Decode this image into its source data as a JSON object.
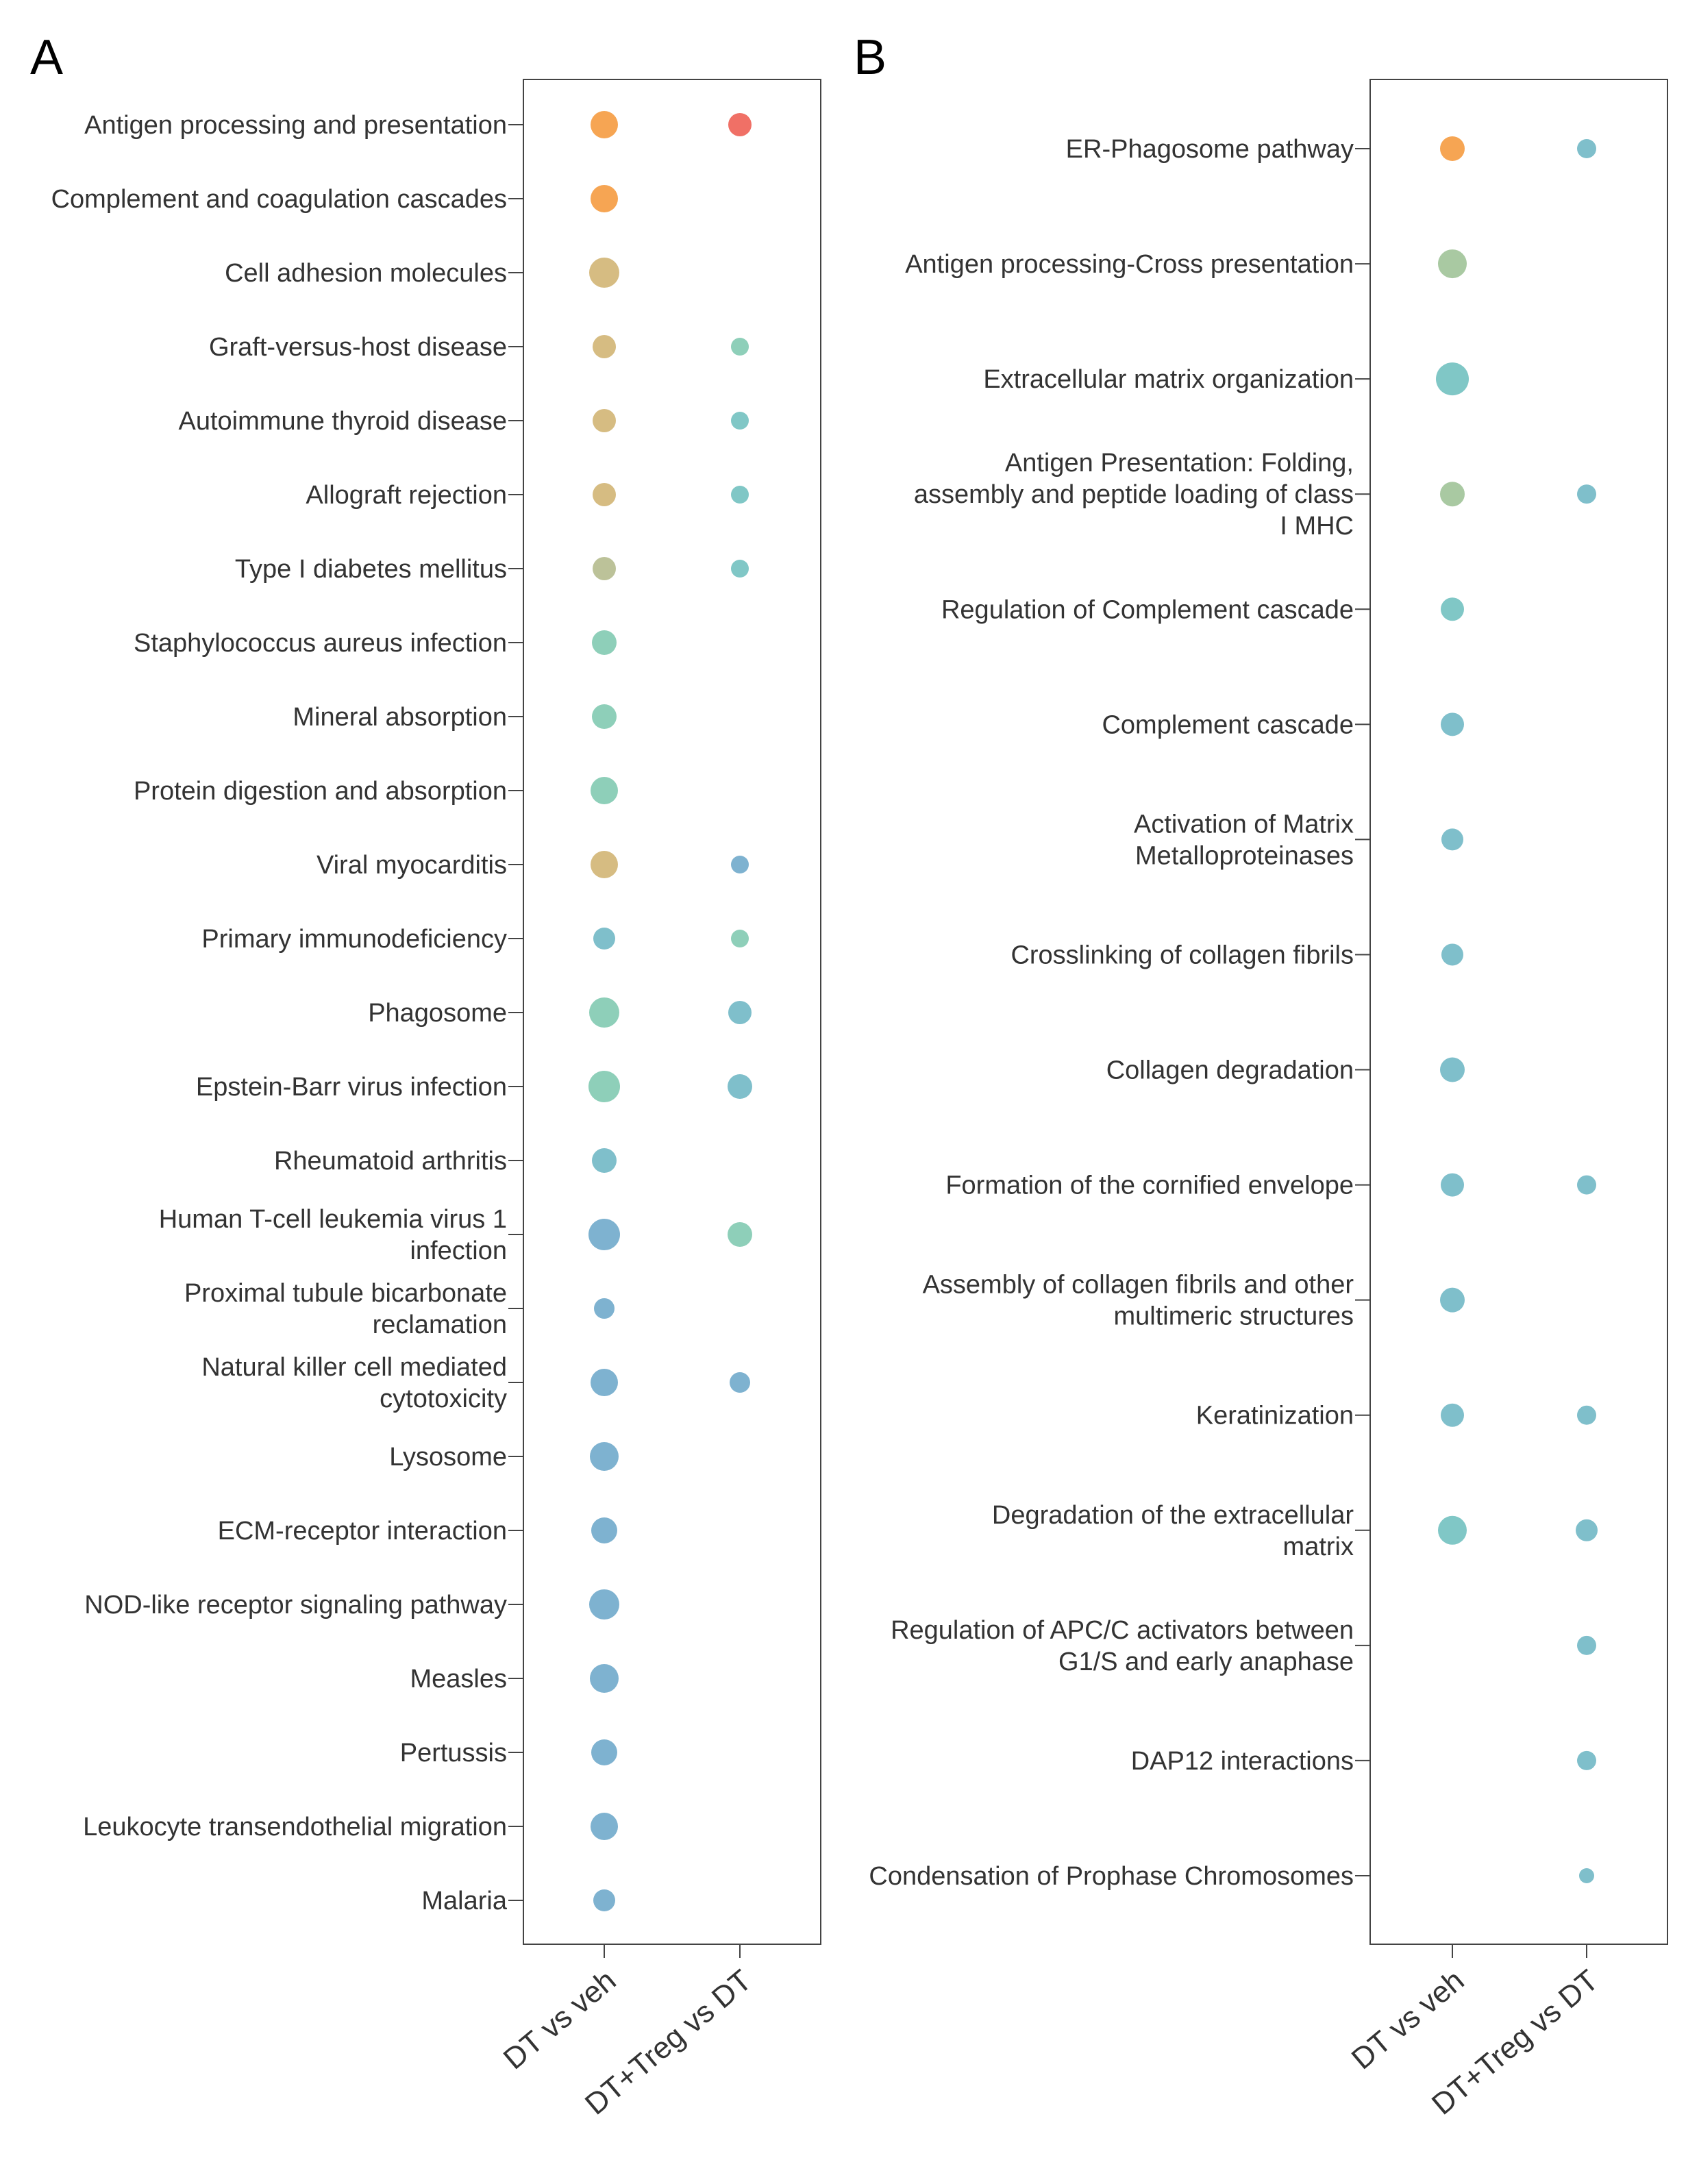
{
  "palette": {
    "orange": "#f6a553",
    "red": "#f07066",
    "tan": "#d6bc82",
    "olive": "#bcc299",
    "sage": "#a9c9a2",
    "mint": "#8ecfb9",
    "teal": "#80c7c6",
    "cyan": "#7fbfcb",
    "blue": "#7eb2d0"
  },
  "chart_data": [
    {
      "type": "scatter",
      "panel_label": "A",
      "x_categories": [
        "DT vs veh",
        "DT+Treg vs DT"
      ],
      "y_terms": [
        [
          "Antigen processing and presentation"
        ],
        [
          "Complement and coagulation cascades"
        ],
        [
          "Cell adhesion molecules"
        ],
        [
          "Graft-versus-host disease"
        ],
        [
          "Autoimmune thyroid disease"
        ],
        [
          "Allograft rejection"
        ],
        [
          "Type I diabetes mellitus"
        ],
        [
          "Staphylococcus aureus infection"
        ],
        [
          "Mineral absorption"
        ],
        [
          "Protein digestion and absorption"
        ],
        [
          "Viral myocarditis"
        ],
        [
          "Primary immunodeficiency"
        ],
        [
          "Phagosome"
        ],
        [
          "Epstein-Barr virus infection"
        ],
        [
          "Rheumatoid arthritis"
        ],
        [
          "Human T-cell leukemia virus 1",
          "infection"
        ],
        [
          "Proximal tubule bicarbonate",
          "reclamation"
        ],
        [
          "Natural killer cell mediated",
          "cytotoxicity"
        ],
        [
          "Lysosome"
        ],
        [
          "ECM-receptor interaction"
        ],
        [
          "NOD-like receptor signaling pathway"
        ],
        [
          "Measles"
        ],
        [
          "Pertussis"
        ],
        [
          "Leukocyte transendothelial migration"
        ],
        [
          "Malaria"
        ]
      ],
      "points": [
        {
          "term": 0,
          "x": 0,
          "size": 20,
          "color": "orange"
        },
        {
          "term": 0,
          "x": 1,
          "size": 17,
          "color": "red"
        },
        {
          "term": 1,
          "x": 0,
          "size": 20,
          "color": "orange"
        },
        {
          "term": 2,
          "x": 0,
          "size": 22,
          "color": "tan"
        },
        {
          "term": 3,
          "x": 0,
          "size": 17,
          "color": "tan"
        },
        {
          "term": 3,
          "x": 1,
          "size": 13,
          "color": "mint"
        },
        {
          "term": 4,
          "x": 0,
          "size": 17,
          "color": "tan"
        },
        {
          "term": 4,
          "x": 1,
          "size": 13,
          "color": "teal"
        },
        {
          "term": 5,
          "x": 0,
          "size": 17,
          "color": "tan"
        },
        {
          "term": 5,
          "x": 1,
          "size": 13,
          "color": "teal"
        },
        {
          "term": 6,
          "x": 0,
          "size": 17,
          "color": "olive"
        },
        {
          "term": 6,
          "x": 1,
          "size": 13,
          "color": "teal"
        },
        {
          "term": 7,
          "x": 0,
          "size": 18,
          "color": "mint"
        },
        {
          "term": 8,
          "x": 0,
          "size": 18,
          "color": "mint"
        },
        {
          "term": 9,
          "x": 0,
          "size": 20,
          "color": "mint"
        },
        {
          "term": 10,
          "x": 0,
          "size": 20,
          "color": "tan"
        },
        {
          "term": 10,
          "x": 1,
          "size": 13,
          "color": "blue"
        },
        {
          "term": 11,
          "x": 0,
          "size": 16,
          "color": "cyan"
        },
        {
          "term": 11,
          "x": 1,
          "size": 13,
          "color": "mint"
        },
        {
          "term": 12,
          "x": 0,
          "size": 22,
          "color": "mint"
        },
        {
          "term": 12,
          "x": 1,
          "size": 17,
          "color": "cyan"
        },
        {
          "term": 13,
          "x": 0,
          "size": 23,
          "color": "mint"
        },
        {
          "term": 13,
          "x": 1,
          "size": 18,
          "color": "cyan"
        },
        {
          "term": 14,
          "x": 0,
          "size": 18,
          "color": "cyan"
        },
        {
          "term": 15,
          "x": 0,
          "size": 23,
          "color": "blue"
        },
        {
          "term": 15,
          "x": 1,
          "size": 18,
          "color": "mint"
        },
        {
          "term": 16,
          "x": 0,
          "size": 15,
          "color": "blue"
        },
        {
          "term": 17,
          "x": 0,
          "size": 20,
          "color": "blue"
        },
        {
          "term": 17,
          "x": 1,
          "size": 15,
          "color": "blue"
        },
        {
          "term": 18,
          "x": 0,
          "size": 21,
          "color": "blue"
        },
        {
          "term": 19,
          "x": 0,
          "size": 19,
          "color": "blue"
        },
        {
          "term": 20,
          "x": 0,
          "size": 22,
          "color": "blue"
        },
        {
          "term": 21,
          "x": 0,
          "size": 21,
          "color": "blue"
        },
        {
          "term": 22,
          "x": 0,
          "size": 19,
          "color": "blue"
        },
        {
          "term": 23,
          "x": 0,
          "size": 20,
          "color": "blue"
        },
        {
          "term": 24,
          "x": 0,
          "size": 16,
          "color": "blue"
        }
      ]
    },
    {
      "type": "scatter",
      "panel_label": "B",
      "x_categories": [
        "DT vs veh",
        "DT+Treg vs DT"
      ],
      "y_terms": [
        [
          "ER-Phagosome pathway"
        ],
        [
          "Antigen processing-Cross presentation"
        ],
        [
          "Extracellular matrix organization"
        ],
        [
          "Antigen Presentation: Folding,",
          "assembly and peptide loading of class",
          "I MHC"
        ],
        [
          "Regulation of Complement cascade"
        ],
        [
          "Complement cascade"
        ],
        [
          "Activation of Matrix",
          "Metalloproteinases"
        ],
        [
          "Crosslinking of collagen fibrils"
        ],
        [
          "Collagen degradation"
        ],
        [
          "Formation of the cornified envelope"
        ],
        [
          "Assembly of collagen fibrils and other",
          "multimeric structures"
        ],
        [
          "Keratinization"
        ],
        [
          "Degradation of the extracellular",
          "matrix"
        ],
        [
          "Regulation of APC/C activators between",
          "G1/S and early anaphase"
        ],
        [
          "DAP12 interactions"
        ],
        [
          "Condensation of Prophase Chromosomes"
        ]
      ],
      "points": [
        {
          "term": 0,
          "x": 0,
          "size": 18,
          "color": "orange"
        },
        {
          "term": 0,
          "x": 1,
          "size": 14,
          "color": "cyan"
        },
        {
          "term": 1,
          "x": 0,
          "size": 21,
          "color": "sage"
        },
        {
          "term": 2,
          "x": 0,
          "size": 24,
          "color": "teal"
        },
        {
          "term": 3,
          "x": 0,
          "size": 18,
          "color": "sage"
        },
        {
          "term": 3,
          "x": 1,
          "size": 14,
          "color": "cyan"
        },
        {
          "term": 4,
          "x": 0,
          "size": 17,
          "color": "teal"
        },
        {
          "term": 5,
          "x": 0,
          "size": 17,
          "color": "cyan"
        },
        {
          "term": 6,
          "x": 0,
          "size": 16,
          "color": "cyan"
        },
        {
          "term": 7,
          "x": 0,
          "size": 16,
          "color": "cyan"
        },
        {
          "term": 8,
          "x": 0,
          "size": 18,
          "color": "cyan"
        },
        {
          "term": 9,
          "x": 0,
          "size": 17,
          "color": "cyan"
        },
        {
          "term": 9,
          "x": 1,
          "size": 14,
          "color": "cyan"
        },
        {
          "term": 10,
          "x": 0,
          "size": 18,
          "color": "cyan"
        },
        {
          "term": 11,
          "x": 0,
          "size": 17,
          "color": "cyan"
        },
        {
          "term": 11,
          "x": 1,
          "size": 14,
          "color": "cyan"
        },
        {
          "term": 12,
          "x": 0,
          "size": 21,
          "color": "teal"
        },
        {
          "term": 12,
          "x": 1,
          "size": 16,
          "color": "cyan"
        },
        {
          "term": 13,
          "x": 1,
          "size": 14,
          "color": "cyan"
        },
        {
          "term": 14,
          "x": 1,
          "size": 14,
          "color": "cyan"
        },
        {
          "term": 15,
          "x": 1,
          "size": 11,
          "color": "cyan"
        }
      ]
    }
  ]
}
